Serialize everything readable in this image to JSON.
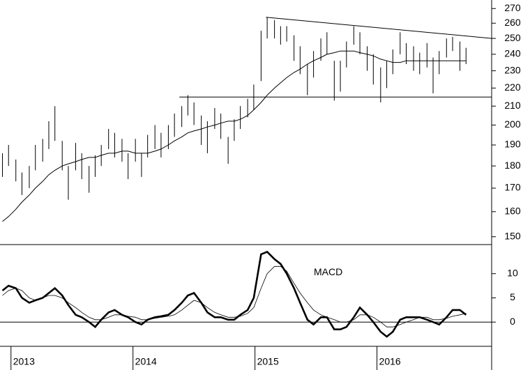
{
  "chart_data": [
    {
      "type": "range_bar",
      "log_scale": true,
      "color": "#000000",
      "x": [
        2012.93,
        2012.98,
        2013.04,
        2013.09,
        2013.15,
        2013.2,
        2013.26,
        2013.31,
        2013.36,
        2013.42,
        2013.47,
        2013.53,
        2013.58,
        2013.64,
        2013.69,
        2013.74,
        2013.8,
        2013.85,
        2013.91,
        2013.96,
        2014.02,
        2014.07,
        2014.12,
        2014.18,
        2014.23,
        2014.29,
        2014.34,
        2014.4,
        2014.45,
        2014.5,
        2014.56,
        2014.61,
        2014.67,
        2014.72,
        2014.78,
        2014.83,
        2014.88,
        2014.94,
        2014.99,
        2015.05,
        2015.1,
        2015.16,
        2015.21,
        2015.26,
        2015.32,
        2015.37,
        2015.43,
        2015.48,
        2015.54,
        2015.59,
        2015.65,
        2015.7,
        2015.75,
        2015.81,
        2015.86,
        2015.92,
        2015.97,
        2016.03,
        2016.08,
        2016.13,
        2016.19,
        2016.24,
        2016.3,
        2016.35,
        2016.41,
        2016.46,
        2016.51,
        2016.57,
        2016.62,
        2016.68,
        2016.73
      ],
      "high": [
        186,
        190,
        183,
        177,
        180,
        190,
        193,
        202,
        210,
        192,
        180,
        191,
        186,
        180,
        185,
        190,
        198,
        196,
        193,
        186,
        193,
        186,
        195,
        200,
        196,
        200,
        206,
        210,
        216,
        212,
        205,
        202,
        209,
        206,
        194,
        203,
        210,
        214,
        222,
        255,
        264,
        262,
        258,
        258,
        252,
        245,
        234,
        242,
        250,
        254,
        236,
        236,
        248,
        258,
        254,
        245,
        240,
        232,
        236,
        243,
        254,
        247,
        245,
        241,
        247,
        238,
        242,
        250,
        251,
        248,
        244
      ],
      "low": [
        175,
        180,
        173,
        167,
        170,
        178,
        182,
        188,
        192,
        178,
        165,
        178,
        174,
        168,
        175,
        180,
        188,
        184,
        182,
        174,
        182,
        175,
        184,
        188,
        184,
        188,
        194,
        199,
        205,
        200,
        190,
        186,
        198,
        193,
        181,
        192,
        198,
        204,
        208,
        224,
        250,
        250,
        246,
        248,
        236,
        228,
        216,
        226,
        236,
        240,
        213,
        218,
        232,
        246,
        240,
        230,
        222,
        212,
        220,
        228,
        240,
        234,
        230,
        228,
        232,
        217,
        228,
        238,
        242,
        230,
        234
      ],
      "series": [
        {
          "color": "#000000",
          "values": [
            156,
            158,
            161,
            164,
            167,
            170,
            173,
            176,
            178,
            180,
            181,
            182,
            183,
            184,
            184,
            185,
            186,
            186,
            187,
            187,
            186,
            186,
            186,
            187,
            188,
            190,
            192,
            194,
            196,
            197,
            198,
            199,
            200,
            201,
            202,
            202,
            203,
            205,
            208,
            212,
            216,
            220,
            223,
            226,
            229,
            231,
            234,
            236,
            238,
            240,
            241,
            242,
            242,
            242,
            241,
            240,
            239,
            237,
            236,
            235,
            235,
            236,
            236,
            236,
            236,
            236,
            236,
            236,
            236,
            236,
            236
          ]
        }
      ],
      "lines": [
        {
          "x": [
            2014.38,
            2016.94
          ],
          "values": [
            215,
            215
          ]
        },
        {
          "x": [
            2015.09,
            2016.94
          ],
          "values": [
            264,
            250
          ]
        }
      ],
      "xlim": [
        2012.91,
        2016.94
      ],
      "ylim": [
        147,
        276
      ],
      "yticks": [
        150,
        160,
        170,
        180,
        190,
        200,
        210,
        220,
        230,
        240,
        250,
        260,
        270
      ]
    },
    {
      "type": "line",
      "annotation": {
        "text": "MACD",
        "x": 2015.6,
        "y": 10.2
      },
      "x": [
        2012.93,
        2012.98,
        2013.04,
        2013.09,
        2013.15,
        2013.2,
        2013.26,
        2013.31,
        2013.36,
        2013.42,
        2013.47,
        2013.53,
        2013.58,
        2013.64,
        2013.69,
        2013.74,
        2013.8,
        2013.85,
        2013.91,
        2013.96,
        2014.02,
        2014.07,
        2014.12,
        2014.18,
        2014.23,
        2014.29,
        2014.34,
        2014.4,
        2014.45,
        2014.5,
        2014.56,
        2014.61,
        2014.67,
        2014.72,
        2014.78,
        2014.83,
        2014.88,
        2014.94,
        2014.99,
        2015.05,
        2015.1,
        2015.16,
        2015.21,
        2015.26,
        2015.32,
        2015.37,
        2015.43,
        2015.48,
        2015.54,
        2015.59,
        2015.65,
        2015.7,
        2015.75,
        2015.81,
        2015.86,
        2015.92,
        2015.97,
        2016.03,
        2016.08,
        2016.13,
        2016.19,
        2016.24,
        2016.3,
        2016.35,
        2016.41,
        2016.46,
        2016.51,
        2016.57,
        2016.62,
        2016.68,
        2016.73
      ],
      "series": [
        {
          "color": "#000000",
          "line_width": 2.6,
          "values": [
            6.5,
            7.5,
            7,
            5,
            4,
            4.5,
            5,
            6,
            7,
            5.5,
            3.5,
            1.5,
            1,
            0,
            -1,
            0.5,
            2,
            2.5,
            1.5,
            1,
            0,
            -0.5,
            0.5,
            1,
            1.2,
            1.5,
            2.5,
            4,
            5.5,
            6,
            4,
            2,
            1,
            1,
            0.5,
            0.5,
            1.5,
            2.5,
            5,
            14,
            14.5,
            13,
            12,
            10,
            7,
            4,
            0.5,
            -0.5,
            1,
            1,
            -1.5,
            -1.5,
            -1,
            1,
            3,
            1.5,
            0,
            -2,
            -3,
            -2,
            0.5,
            1,
            1,
            1,
            0.5,
            0,
            -0.5,
            1,
            2.5,
            2.5,
            1.5
          ]
        },
        {
          "color": "#000000",
          "line_width": 0.8,
          "values": [
            5.5,
            6.5,
            7,
            6.5,
            5,
            4.5,
            5,
            5.5,
            5.5,
            5,
            4,
            3,
            2,
            1,
            0.5,
            0.5,
            1,
            1.5,
            1.5,
            1.2,
            1,
            0.5,
            0.5,
            0.8,
            1,
            1.2,
            1.5,
            2.5,
            3.5,
            4.5,
            4,
            3,
            2,
            1.5,
            1,
            1,
            1.2,
            1.8,
            3,
            7,
            10,
            11.5,
            11.5,
            10.5,
            8,
            6,
            4,
            2.5,
            1.5,
            1,
            0.5,
            0,
            0,
            0.5,
            1.5,
            1.5,
            1,
            0,
            -1,
            -1,
            -0.5,
            0,
            0.5,
            1,
            1,
            0.5,
            0.5,
            0.8,
            1.2,
            1.5,
            1.8
          ]
        }
      ],
      "hline": 0,
      "xlim": [
        2012.91,
        2016.94
      ],
      "ylim": [
        -5,
        16
      ],
      "yticks": [
        0,
        5,
        10
      ],
      "xticks": [
        2013,
        2014,
        2015,
        2016
      ]
    }
  ]
}
